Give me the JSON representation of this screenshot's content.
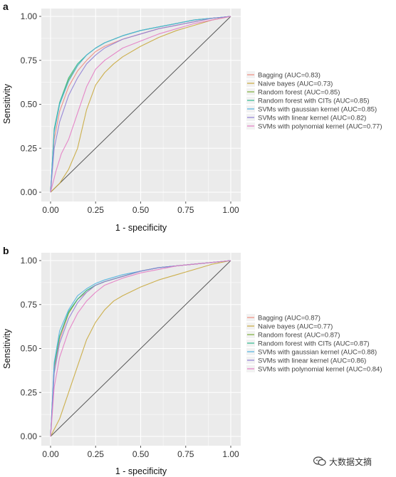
{
  "watermark": "大数据文摘",
  "colors": {
    "panel_bg": "#ebebeb",
    "grid": "#ffffff",
    "diagonal": "#555555",
    "legend_key_bg": "#f2f2f2"
  },
  "chart_data": [
    {
      "panel": "a",
      "type": "line",
      "xlabel": "1 - specificity",
      "ylabel": "Sensitivity",
      "xlim": [
        0,
        1
      ],
      "ylim": [
        0,
        1
      ],
      "xticks": [
        "0.00",
        "0.25",
        "0.50",
        "0.75",
        "1.00"
      ],
      "yticks": [
        "0.00",
        "0.25",
        "0.50",
        "0.75",
        "1.00"
      ],
      "grid": true,
      "legend_position": "right",
      "reference_line": {
        "x": [
          0,
          1
        ],
        "y": [
          0,
          1
        ]
      },
      "series": [
        {
          "name": "Bagging (AUC=0.83)",
          "color": "#f08a7e",
          "x": [
            0,
            0.02,
            0.05,
            0.1,
            0.15,
            0.2,
            0.25,
            0.3,
            0.4,
            0.5,
            0.6,
            0.7,
            0.8,
            0.9,
            1
          ],
          "y": [
            0,
            0.3,
            0.46,
            0.6,
            0.69,
            0.75,
            0.8,
            0.83,
            0.87,
            0.9,
            0.93,
            0.95,
            0.97,
            0.99,
            1
          ]
        },
        {
          "name": "Naive bayes (AUC=0.73)",
          "color": "#c9a83c",
          "x": [
            0,
            0.05,
            0.1,
            0.15,
            0.2,
            0.25,
            0.3,
            0.35,
            0.4,
            0.5,
            0.6,
            0.7,
            0.8,
            0.9,
            1
          ],
          "y": [
            0,
            0.05,
            0.13,
            0.25,
            0.47,
            0.61,
            0.68,
            0.73,
            0.77,
            0.83,
            0.88,
            0.92,
            0.95,
            0.98,
            1
          ]
        },
        {
          "name": "Random forest (AUC=0.85)",
          "color": "#7cae3a",
          "x": [
            0,
            0.02,
            0.05,
            0.1,
            0.15,
            0.2,
            0.25,
            0.3,
            0.4,
            0.5,
            0.6,
            0.7,
            0.8,
            0.9,
            1
          ],
          "y": [
            0,
            0.35,
            0.5,
            0.64,
            0.72,
            0.78,
            0.82,
            0.85,
            0.89,
            0.92,
            0.94,
            0.96,
            0.98,
            0.99,
            1
          ]
        },
        {
          "name": "Random forest with CITs (AUC=0.85)",
          "color": "#2fbb8f",
          "x": [
            0,
            0.02,
            0.05,
            0.1,
            0.15,
            0.2,
            0.25,
            0.3,
            0.4,
            0.5,
            0.6,
            0.7,
            0.8,
            0.9,
            1
          ],
          "y": [
            0,
            0.36,
            0.51,
            0.65,
            0.73,
            0.78,
            0.82,
            0.85,
            0.89,
            0.92,
            0.94,
            0.96,
            0.98,
            0.99,
            1
          ]
        },
        {
          "name": "SVMs with gaussian kernel (AUC=0.85)",
          "color": "#4fb3e0",
          "x": [
            0,
            0.02,
            0.05,
            0.1,
            0.15,
            0.2,
            0.25,
            0.3,
            0.4,
            0.5,
            0.6,
            0.7,
            0.8,
            0.9,
            1
          ],
          "y": [
            0,
            0.34,
            0.5,
            0.63,
            0.72,
            0.78,
            0.82,
            0.85,
            0.89,
            0.92,
            0.94,
            0.96,
            0.98,
            0.99,
            1
          ]
        },
        {
          "name": "SVMs with linear kernel (AUC=0.82)",
          "color": "#8f7fd6",
          "x": [
            0,
            0.02,
            0.05,
            0.1,
            0.15,
            0.2,
            0.25,
            0.3,
            0.4,
            0.5,
            0.6,
            0.7,
            0.8,
            0.9,
            1
          ],
          "y": [
            0,
            0.25,
            0.4,
            0.55,
            0.65,
            0.73,
            0.78,
            0.82,
            0.87,
            0.9,
            0.93,
            0.95,
            0.97,
            0.99,
            1
          ]
        },
        {
          "name": "SVMs with polynomial kernel (AUC=0.77)",
          "color": "#e47cc4",
          "x": [
            0,
            0.03,
            0.06,
            0.1,
            0.15,
            0.2,
            0.25,
            0.3,
            0.4,
            0.5,
            0.6,
            0.7,
            0.8,
            0.9,
            1
          ],
          "y": [
            0,
            0.12,
            0.22,
            0.3,
            0.45,
            0.6,
            0.7,
            0.75,
            0.82,
            0.86,
            0.9,
            0.93,
            0.96,
            0.98,
            1
          ]
        }
      ]
    },
    {
      "panel": "b",
      "type": "line",
      "xlabel": "1 - specificity",
      "ylabel": "Sensitivity",
      "xlim": [
        0,
        1
      ],
      "ylim": [
        0,
        1
      ],
      "xticks": [
        "0.00",
        "0.25",
        "0.50",
        "0.75",
        "1.00"
      ],
      "yticks": [
        "0.00",
        "0.25",
        "0.50",
        "0.75",
        "1.00"
      ],
      "grid": true,
      "legend_position": "right",
      "reference_line": {
        "x": [
          0,
          1
        ],
        "y": [
          0,
          1
        ]
      },
      "series": [
        {
          "name": "Bagging (AUC=0.87)",
          "color": "#f08a7e",
          "x": [
            0,
            0.02,
            0.05,
            0.1,
            0.15,
            0.2,
            0.25,
            0.3,
            0.4,
            0.5,
            0.6,
            0.7,
            0.8,
            0.9,
            1
          ],
          "y": [
            0,
            0.38,
            0.55,
            0.7,
            0.78,
            0.82,
            0.86,
            0.88,
            0.91,
            0.94,
            0.96,
            0.97,
            0.98,
            0.99,
            1
          ]
        },
        {
          "name": "Naive bayes (AUC=0.77)",
          "color": "#c9a83c",
          "x": [
            0,
            0.05,
            0.1,
            0.15,
            0.2,
            0.25,
            0.3,
            0.35,
            0.4,
            0.5,
            0.6,
            0.7,
            0.8,
            0.9,
            1
          ],
          "y": [
            0,
            0.1,
            0.25,
            0.4,
            0.55,
            0.65,
            0.72,
            0.77,
            0.8,
            0.85,
            0.89,
            0.92,
            0.95,
            0.98,
            1
          ]
        },
        {
          "name": "Random forest (AUC=0.87)",
          "color": "#7cae3a",
          "x": [
            0,
            0.02,
            0.05,
            0.1,
            0.15,
            0.2,
            0.25,
            0.3,
            0.4,
            0.5,
            0.6,
            0.7,
            0.8,
            0.9,
            1
          ],
          "y": [
            0,
            0.4,
            0.57,
            0.7,
            0.78,
            0.83,
            0.86,
            0.88,
            0.91,
            0.94,
            0.96,
            0.97,
            0.98,
            0.99,
            1
          ]
        },
        {
          "name": "Random forest with CITs (AUC=0.87)",
          "color": "#2fbb8f",
          "x": [
            0,
            0.02,
            0.05,
            0.1,
            0.15,
            0.2,
            0.25,
            0.3,
            0.4,
            0.5,
            0.6,
            0.7,
            0.8,
            0.9,
            1
          ],
          "y": [
            0,
            0.4,
            0.57,
            0.71,
            0.78,
            0.83,
            0.86,
            0.88,
            0.91,
            0.94,
            0.96,
            0.97,
            0.98,
            0.99,
            1
          ]
        },
        {
          "name": "SVMs with gaussian kernel (AUC=0.88)",
          "color": "#4fb3e0",
          "x": [
            0,
            0.02,
            0.05,
            0.1,
            0.15,
            0.2,
            0.25,
            0.3,
            0.4,
            0.5,
            0.6,
            0.7,
            0.8,
            0.9,
            1
          ],
          "y": [
            0,
            0.42,
            0.6,
            0.72,
            0.8,
            0.84,
            0.87,
            0.89,
            0.92,
            0.94,
            0.96,
            0.97,
            0.98,
            0.99,
            1
          ]
        },
        {
          "name": "SVMs with linear kernel (AUC=0.86)",
          "color": "#8f7fd6",
          "x": [
            0,
            0.02,
            0.05,
            0.1,
            0.15,
            0.2,
            0.25,
            0.3,
            0.4,
            0.5,
            0.6,
            0.7,
            0.8,
            0.9,
            1
          ],
          "y": [
            0,
            0.36,
            0.53,
            0.67,
            0.76,
            0.82,
            0.86,
            0.88,
            0.91,
            0.94,
            0.96,
            0.97,
            0.98,
            0.99,
            1
          ]
        },
        {
          "name": "SVMs with polynomial kernel (AUC=0.84)",
          "color": "#e47cc4",
          "x": [
            0,
            0.02,
            0.05,
            0.1,
            0.15,
            0.2,
            0.25,
            0.3,
            0.4,
            0.5,
            0.6,
            0.7,
            0.8,
            0.9,
            1
          ],
          "y": [
            0,
            0.28,
            0.45,
            0.6,
            0.7,
            0.77,
            0.82,
            0.86,
            0.9,
            0.93,
            0.95,
            0.97,
            0.98,
            0.99,
            1
          ]
        }
      ]
    }
  ]
}
